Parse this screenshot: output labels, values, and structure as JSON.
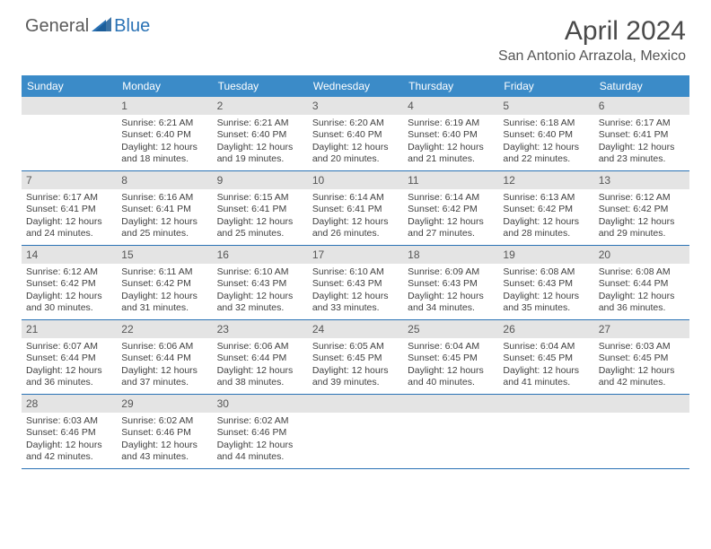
{
  "logo": {
    "t1": "General",
    "t2": "Blue"
  },
  "title": "April 2024",
  "location": "San Antonio Arrazola, Mexico",
  "colors": {
    "header_bg": "#3b8bc8",
    "daynum_bg": "#e4e4e4",
    "rule": "#2a72b5",
    "text": "#404040",
    "title": "#4a4a4a"
  },
  "dow": [
    "Sunday",
    "Monday",
    "Tuesday",
    "Wednesday",
    "Thursday",
    "Friday",
    "Saturday"
  ],
  "weeks": [
    [
      {
        "n": "",
        "body": []
      },
      {
        "n": "1",
        "body": [
          "Sunrise: 6:21 AM",
          "Sunset: 6:40 PM",
          "Daylight: 12 hours",
          "and 18 minutes."
        ]
      },
      {
        "n": "2",
        "body": [
          "Sunrise: 6:21 AM",
          "Sunset: 6:40 PM",
          "Daylight: 12 hours",
          "and 19 minutes."
        ]
      },
      {
        "n": "3",
        "body": [
          "Sunrise: 6:20 AM",
          "Sunset: 6:40 PM",
          "Daylight: 12 hours",
          "and 20 minutes."
        ]
      },
      {
        "n": "4",
        "body": [
          "Sunrise: 6:19 AM",
          "Sunset: 6:40 PM",
          "Daylight: 12 hours",
          "and 21 minutes."
        ]
      },
      {
        "n": "5",
        "body": [
          "Sunrise: 6:18 AM",
          "Sunset: 6:40 PM",
          "Daylight: 12 hours",
          "and 22 minutes."
        ]
      },
      {
        "n": "6",
        "body": [
          "Sunrise: 6:17 AM",
          "Sunset: 6:41 PM",
          "Daylight: 12 hours",
          "and 23 minutes."
        ]
      }
    ],
    [
      {
        "n": "7",
        "body": [
          "Sunrise: 6:17 AM",
          "Sunset: 6:41 PM",
          "Daylight: 12 hours",
          "and 24 minutes."
        ]
      },
      {
        "n": "8",
        "body": [
          "Sunrise: 6:16 AM",
          "Sunset: 6:41 PM",
          "Daylight: 12 hours",
          "and 25 minutes."
        ]
      },
      {
        "n": "9",
        "body": [
          "Sunrise: 6:15 AM",
          "Sunset: 6:41 PM",
          "Daylight: 12 hours",
          "and 25 minutes."
        ]
      },
      {
        "n": "10",
        "body": [
          "Sunrise: 6:14 AM",
          "Sunset: 6:41 PM",
          "Daylight: 12 hours",
          "and 26 minutes."
        ]
      },
      {
        "n": "11",
        "body": [
          "Sunrise: 6:14 AM",
          "Sunset: 6:42 PM",
          "Daylight: 12 hours",
          "and 27 minutes."
        ]
      },
      {
        "n": "12",
        "body": [
          "Sunrise: 6:13 AM",
          "Sunset: 6:42 PM",
          "Daylight: 12 hours",
          "and 28 minutes."
        ]
      },
      {
        "n": "13",
        "body": [
          "Sunrise: 6:12 AM",
          "Sunset: 6:42 PM",
          "Daylight: 12 hours",
          "and 29 minutes."
        ]
      }
    ],
    [
      {
        "n": "14",
        "body": [
          "Sunrise: 6:12 AM",
          "Sunset: 6:42 PM",
          "Daylight: 12 hours",
          "and 30 minutes."
        ]
      },
      {
        "n": "15",
        "body": [
          "Sunrise: 6:11 AM",
          "Sunset: 6:42 PM",
          "Daylight: 12 hours",
          "and 31 minutes."
        ]
      },
      {
        "n": "16",
        "body": [
          "Sunrise: 6:10 AM",
          "Sunset: 6:43 PM",
          "Daylight: 12 hours",
          "and 32 minutes."
        ]
      },
      {
        "n": "17",
        "body": [
          "Sunrise: 6:10 AM",
          "Sunset: 6:43 PM",
          "Daylight: 12 hours",
          "and 33 minutes."
        ]
      },
      {
        "n": "18",
        "body": [
          "Sunrise: 6:09 AM",
          "Sunset: 6:43 PM",
          "Daylight: 12 hours",
          "and 34 minutes."
        ]
      },
      {
        "n": "19",
        "body": [
          "Sunrise: 6:08 AM",
          "Sunset: 6:43 PM",
          "Daylight: 12 hours",
          "and 35 minutes."
        ]
      },
      {
        "n": "20",
        "body": [
          "Sunrise: 6:08 AM",
          "Sunset: 6:44 PM",
          "Daylight: 12 hours",
          "and 36 minutes."
        ]
      }
    ],
    [
      {
        "n": "21",
        "body": [
          "Sunrise: 6:07 AM",
          "Sunset: 6:44 PM",
          "Daylight: 12 hours",
          "and 36 minutes."
        ]
      },
      {
        "n": "22",
        "body": [
          "Sunrise: 6:06 AM",
          "Sunset: 6:44 PM",
          "Daylight: 12 hours",
          "and 37 minutes."
        ]
      },
      {
        "n": "23",
        "body": [
          "Sunrise: 6:06 AM",
          "Sunset: 6:44 PM",
          "Daylight: 12 hours",
          "and 38 minutes."
        ]
      },
      {
        "n": "24",
        "body": [
          "Sunrise: 6:05 AM",
          "Sunset: 6:45 PM",
          "Daylight: 12 hours",
          "and 39 minutes."
        ]
      },
      {
        "n": "25",
        "body": [
          "Sunrise: 6:04 AM",
          "Sunset: 6:45 PM",
          "Daylight: 12 hours",
          "and 40 minutes."
        ]
      },
      {
        "n": "26",
        "body": [
          "Sunrise: 6:04 AM",
          "Sunset: 6:45 PM",
          "Daylight: 12 hours",
          "and 41 minutes."
        ]
      },
      {
        "n": "27",
        "body": [
          "Sunrise: 6:03 AM",
          "Sunset: 6:45 PM",
          "Daylight: 12 hours",
          "and 42 minutes."
        ]
      }
    ],
    [
      {
        "n": "28",
        "body": [
          "Sunrise: 6:03 AM",
          "Sunset: 6:46 PM",
          "Daylight: 12 hours",
          "and 42 minutes."
        ]
      },
      {
        "n": "29",
        "body": [
          "Sunrise: 6:02 AM",
          "Sunset: 6:46 PM",
          "Daylight: 12 hours",
          "and 43 minutes."
        ]
      },
      {
        "n": "30",
        "body": [
          "Sunrise: 6:02 AM",
          "Sunset: 6:46 PM",
          "Daylight: 12 hours",
          "and 44 minutes."
        ]
      },
      {
        "n": "",
        "body": []
      },
      {
        "n": "",
        "body": []
      },
      {
        "n": "",
        "body": []
      },
      {
        "n": "",
        "body": []
      }
    ]
  ]
}
